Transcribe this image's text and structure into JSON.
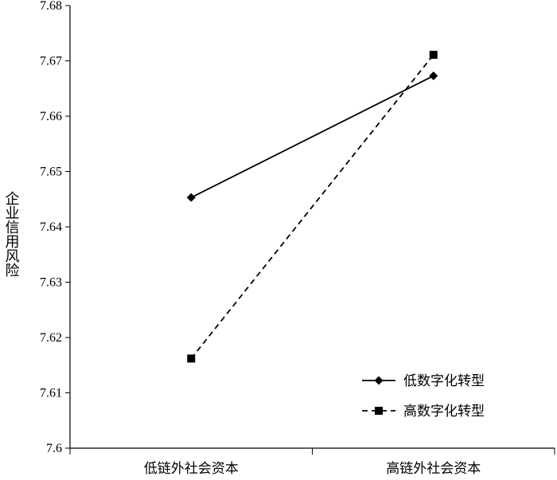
{
  "chart_data": {
    "type": "line",
    "title": "",
    "xlabel": "",
    "ylabel": "企业信用风险",
    "categories": [
      "低链外社会资本",
      "高链外社会资本"
    ],
    "ylim": [
      7.6,
      7.68
    ],
    "yticks": [
      "7.6",
      "7.61",
      "7.62",
      "7.63",
      "7.64",
      "7.65",
      "7.66",
      "7.67",
      "7.68"
    ],
    "grid": false,
    "legend_position": "bottom-right",
    "series": [
      {
        "name": "低数字化转型",
        "values": [
          7.6453,
          7.6673
        ],
        "line_style": "solid",
        "marker": "diamond",
        "color": "#000000"
      },
      {
        "name": "高数字化转型",
        "values": [
          7.6162,
          7.6711
        ],
        "line_style": "dashed",
        "marker": "square",
        "color": "#000000"
      }
    ]
  }
}
